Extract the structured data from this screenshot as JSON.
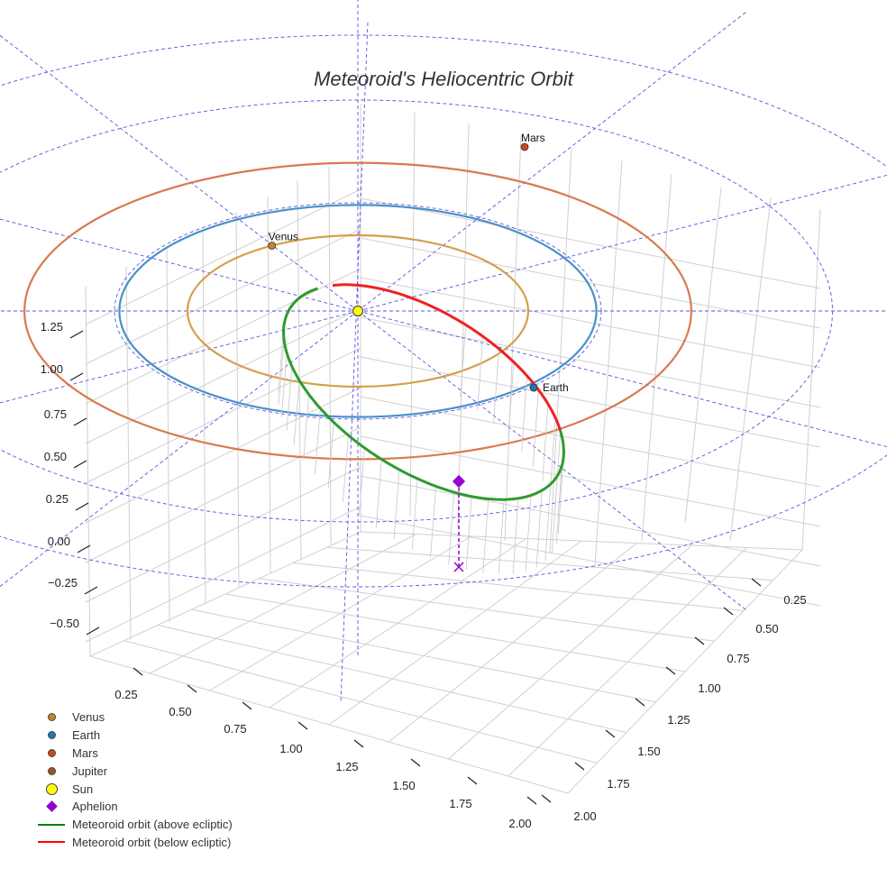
{
  "chart_data": {
    "type": "scatter3d",
    "title": "Meteoroid's Heliocentric Orbit",
    "z_ticks": [
      "1.25",
      "1.00",
      "0.75",
      "0.50",
      "0.25",
      "0.00",
      "−0.25",
      "−0.50"
    ],
    "x_ticks": [
      "0.25",
      "0.50",
      "0.75",
      "1.00",
      "1.25",
      "1.50",
      "1.75",
      "2.00"
    ],
    "y_ticks": [
      "0.25",
      "0.50",
      "0.75",
      "1.00",
      "1.25",
      "1.50",
      "1.75",
      "2.00"
    ],
    "sun": {
      "name": "Sun",
      "color": "#ffff00",
      "a_au": 0
    },
    "planets": [
      {
        "name": "Venus",
        "a_au": 0.72,
        "color": "#d4a04a",
        "marker_color": "#c8822e",
        "label": "Venus"
      },
      {
        "name": "Earth",
        "a_au": 1.0,
        "color": "#4a90c8",
        "marker_color": "#1f77b4",
        "label": "Earth"
      },
      {
        "name": "Mars",
        "a_au": 1.52,
        "color": "#d87a4e",
        "marker_color": "#c84a1a",
        "label": "Mars"
      },
      {
        "name": "Jupiter",
        "a_au": 5.2,
        "color": "#b07040",
        "marker_color": "#a0522d",
        "label": ""
      }
    ],
    "meteoroid": {
      "above_color": "#2e9a2e",
      "below_color": "#ee2222",
      "above_name": "Meteoroid orbit (above ecliptic)",
      "below_name": "Meteoroid orbit (below ecliptic)"
    },
    "aphelion": {
      "name": "Aphelion",
      "color": "#9400d3"
    }
  },
  "legend": [
    {
      "label": "Venus",
      "kind": "dot",
      "color": "#c8822e"
    },
    {
      "label": "Earth",
      "kind": "dot",
      "color": "#1f77b4"
    },
    {
      "label": "Mars",
      "kind": "dot",
      "color": "#c84a1a"
    },
    {
      "label": "Jupiter",
      "kind": "dot",
      "color": "#a0522d"
    },
    {
      "label": "Sun",
      "kind": "bigdot",
      "color": "#ffff00"
    },
    {
      "label": "Aphelion",
      "kind": "diamond",
      "color": "#9400d3"
    },
    {
      "label": "Meteoroid orbit (above ecliptic)",
      "kind": "line",
      "color": "#008000"
    },
    {
      "label": "Meteoroid orbit (below ecliptic)",
      "kind": "line",
      "color": "#ff0000"
    }
  ]
}
